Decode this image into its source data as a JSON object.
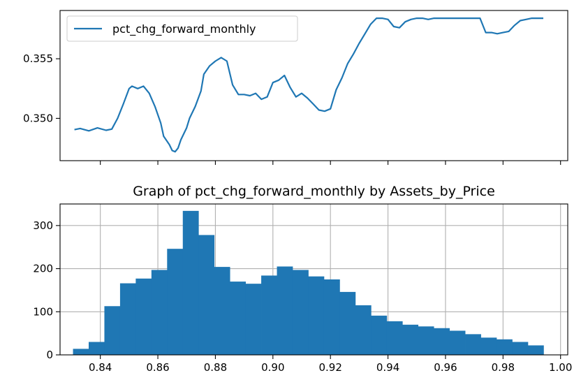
{
  "chart_data": [
    {
      "type": "line",
      "title": "",
      "xlabel": "",
      "ylabel": "",
      "xlim": [
        0.826,
        1.0025
      ],
      "ylim": [
        0.34645,
        0.35905
      ],
      "yticks": [
        0.35,
        0.355
      ],
      "ytick_labels": [
        "0.350",
        "0.355"
      ],
      "xticks": [
        0.84,
        0.86,
        0.88,
        0.9,
        0.92,
        0.94,
        0.96,
        0.98,
        1.0
      ],
      "xtick_labels": [],
      "grid": false,
      "legend": "top-left",
      "color": "#1f77b4",
      "series": [
        {
          "name": "pct_chg_forward_monthly",
          "x": [
            0.831,
            0.833,
            0.836,
            0.839,
            0.842,
            0.844,
            0.846,
            0.848,
            0.85,
            0.851,
            0.853,
            0.855,
            0.857,
            0.859,
            0.861,
            0.862,
            0.864,
            0.865,
            0.866,
            0.867,
            0.868,
            0.869,
            0.87,
            0.871,
            0.872,
            0.873,
            0.875,
            0.876,
            0.878,
            0.88,
            0.882,
            0.884,
            0.886,
            0.888,
            0.89,
            0.892,
            0.894,
            0.896,
            0.898,
            0.9,
            0.902,
            0.904,
            0.906,
            0.908,
            0.91,
            0.912,
            0.914,
            0.916,
            0.918,
            0.92,
            0.922,
            0.924,
            0.926,
            0.928,
            0.93,
            0.932,
            0.934,
            0.936,
            0.938,
            0.94,
            0.942,
            0.944,
            0.946,
            0.948,
            0.95,
            0.952,
            0.954,
            0.956,
            0.958,
            0.96,
            0.962,
            0.964,
            0.966,
            0.968,
            0.97,
            0.972,
            0.974,
            0.976,
            0.978,
            0.98,
            0.982,
            0.984,
            0.986,
            0.988,
            0.99,
            0.992,
            0.994
          ],
          "y": [
            0.34905,
            0.34915,
            0.34895,
            0.3492,
            0.349,
            0.3491,
            0.35,
            0.3512,
            0.3525,
            0.3527,
            0.3525,
            0.3527,
            0.3521,
            0.351,
            0.3496,
            0.3485,
            0.3478,
            0.3473,
            0.3472,
            0.3475,
            0.3482,
            0.3487,
            0.3492,
            0.35,
            0.3505,
            0.351,
            0.3523,
            0.3537,
            0.3544,
            0.3548,
            0.3551,
            0.3548,
            0.3528,
            0.352,
            0.352,
            0.3519,
            0.3521,
            0.3516,
            0.3518,
            0.353,
            0.3532,
            0.3536,
            0.3526,
            0.3518,
            0.3521,
            0.3517,
            0.3512,
            0.3507,
            0.3506,
            0.3508,
            0.3524,
            0.3534,
            0.3546,
            0.3554,
            0.3563,
            0.3571,
            0.3579,
            0.3584,
            0.3584,
            0.3583,
            0.3577,
            0.3576,
            0.3581,
            0.3583,
            0.3584,
            0.3584,
            0.3583,
            0.3584,
            0.3584,
            0.3584,
            0.3584,
            0.3584,
            0.3584,
            0.3584,
            0.3584,
            0.3584,
            0.3572,
            0.3572,
            0.3571,
            0.3572,
            0.3573,
            0.3578,
            0.3582,
            0.3583,
            0.3584,
            0.3584,
            0.3584
          ]
        }
      ]
    },
    {
      "type": "bar",
      "title": "Graph of pct_chg_forward_monthly by Assets_by_Price",
      "xlabel": "",
      "ylabel": "",
      "xlim": [
        0.826,
        1.0025
      ],
      "ylim": [
        0,
        350
      ],
      "yticks": [
        0,
        100,
        200,
        300
      ],
      "ytick_labels": [
        "0",
        "100",
        "200",
        "300"
      ],
      "xticks": [
        0.84,
        0.86,
        0.88,
        0.9,
        0.92,
        0.94,
        0.96,
        0.98,
        1.0
      ],
      "xtick_labels": [
        "0.84",
        "0.86",
        "0.88",
        "0.90",
        "0.92",
        "0.94",
        "0.96",
        "0.98",
        "1.00"
      ],
      "grid": true,
      "color": "#1f77b4",
      "bin_start": 0.8305,
      "bin_width": 0.005453,
      "values": [
        14,
        30,
        113,
        166,
        177,
        197,
        246,
        334,
        278,
        204,
        170,
        165,
        184,
        205,
        197,
        182,
        175,
        146,
        115,
        91,
        78,
        70,
        66,
        62,
        56,
        48,
        40,
        36,
        30,
        22
      ]
    }
  ]
}
